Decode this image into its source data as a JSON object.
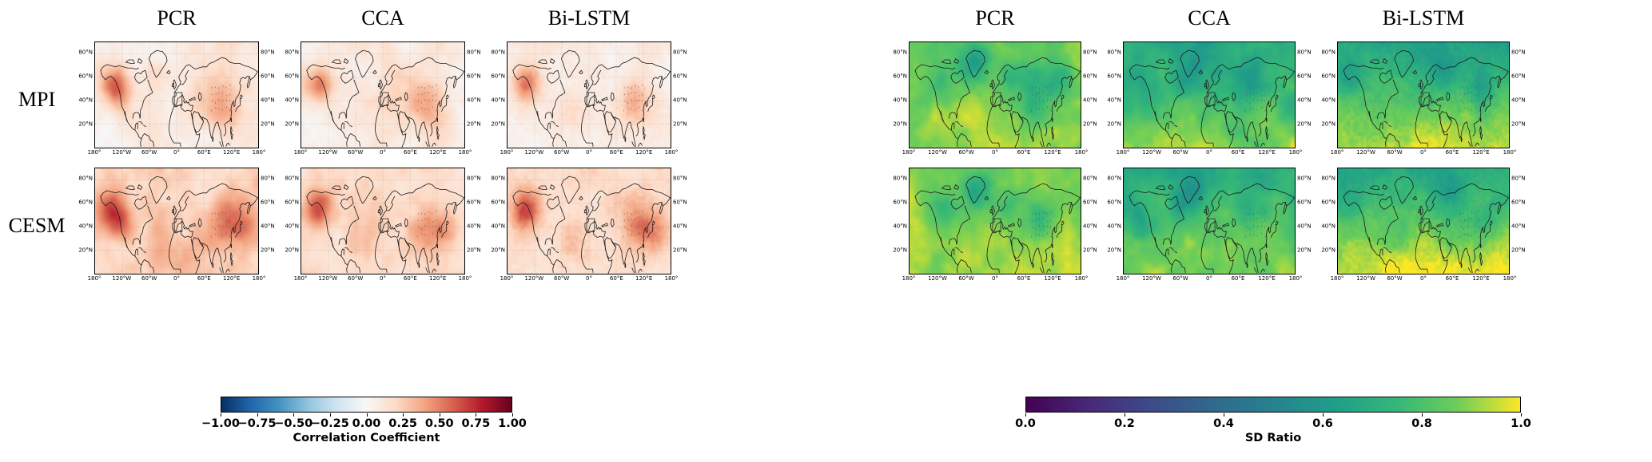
{
  "map_axes": {
    "y_ticks": [
      "80°N",
      "60°N",
      "40°N",
      "20°N"
    ],
    "y_tick_degrees": [
      80,
      60,
      40,
      20
    ],
    "x_ticks": [
      "180°",
      "120°W",
      "60°W",
      "0°",
      "60°E",
      "120°E",
      "180°"
    ],
    "x_tick_degrees": [
      -180,
      -120,
      -60,
      0,
      60,
      120,
      180
    ]
  },
  "panels": [
    {
      "id": "correlation",
      "column_titles": [
        "PCR",
        "CCA",
        "Bi-LSTM"
      ],
      "row_labels": [
        "MPI",
        "CESM"
      ],
      "colorbar": {
        "label": "Correlation Coefficient",
        "colormap": "RdBu_r",
        "tick_labels": [
          "−1.00",
          "−0.75",
          "−0.50",
          "−0.25",
          "0.00",
          "0.25",
          "0.50",
          "0.75",
          "1.00"
        ]
      }
    },
    {
      "id": "sd_ratio",
      "column_titles": [
        "PCR",
        "CCA",
        "Bi-LSTM"
      ],
      "row_labels": [],
      "colorbar": {
        "label": "SD Ratio",
        "colormap": "viridis",
        "tick_labels": [
          "0.0",
          "0.2",
          "0.4",
          "0.6",
          "0.8",
          "1.0"
        ]
      }
    }
  ],
  "chart_data": [
    {
      "type": "heatmap",
      "title": "Correlation Coefficient",
      "columns": [
        "PCR",
        "CCA",
        "Bi-LSTM"
      ],
      "rows": [
        "MPI",
        "CESM"
      ],
      "lon_range": [
        -180,
        180
      ],
      "lat_range": [
        0,
        90
      ],
      "colormap": "RdBu_r",
      "vmin": -1,
      "vmax": 1,
      "stippling": {
        "region": "central and east Asia",
        "lon_range": [
          78,
          118
        ],
        "lat_range": [
          33,
          52
        ]
      },
      "highlight_box": {
        "lon_range": [
          -5,
          12
        ],
        "lat_range": [
          36,
          47
        ]
      },
      "maps": [
        {
          "row": "MPI",
          "col": "PCR",
          "base": 0.1,
          "noise_amp": 0.14,
          "lat_gradient": 0,
          "grain": "smooth",
          "hotspots": [
            {
              "lon": -140,
              "lat": 54,
              "value": 0.42,
              "radius": 16
            },
            {
              "lon": -122,
              "lat": 42,
              "value": 0.22,
              "radius": 12
            },
            {
              "lon": 100,
              "lat": 40,
              "value": 0.26,
              "radius": 22
            },
            {
              "lon": 60,
              "lat": 57,
              "value": 0.12,
              "radius": 20
            },
            {
              "lon": -45,
              "lat": 62,
              "value": 0.14,
              "radius": 14
            },
            {
              "lon": -170,
              "lat": 15,
              "value": -0.1,
              "radius": 24
            }
          ]
        },
        {
          "row": "MPI",
          "col": "CCA",
          "base": 0.1,
          "noise_amp": 0.14,
          "lat_gradient": 0,
          "grain": "smooth",
          "hotspots": [
            {
              "lon": -140,
              "lat": 54,
              "value": 0.4,
              "radius": 16
            },
            {
              "lon": 100,
              "lat": 40,
              "value": 0.28,
              "radius": 22
            },
            {
              "lon": 25,
              "lat": 52,
              "value": 0.12,
              "radius": 22
            },
            {
              "lon": -60,
              "lat": 30,
              "value": 0.08,
              "radius": 16
            },
            {
              "lon": -170,
              "lat": 18,
              "value": -0.08,
              "radius": 22
            }
          ]
        },
        {
          "row": "MPI",
          "col": "Bi-LSTM",
          "base": 0.08,
          "noise_amp": 0.12,
          "lat_gradient": 0,
          "grain": "fine",
          "hotspots": [
            {
              "lon": -140,
              "lat": 54,
              "value": 0.44,
              "radius": 16
            },
            {
              "lon": 102,
              "lat": 41,
              "value": 0.26,
              "radius": 20
            },
            {
              "lon": -40,
              "lat": 30,
              "value": 0.08,
              "radius": 18
            }
          ]
        },
        {
          "row": "CESM",
          "col": "PCR",
          "base": 0.2,
          "noise_amp": 0.16,
          "lat_gradient": 0,
          "grain": "smooth",
          "hotspots": [
            {
              "lon": -142,
              "lat": 54,
              "value": 0.5,
              "radius": 18
            },
            {
              "lon": -120,
              "lat": 40,
              "value": 0.3,
              "radius": 14
            },
            {
              "lon": 108,
              "lat": 40,
              "value": 0.32,
              "radius": 24
            },
            {
              "lon": 150,
              "lat": 38,
              "value": 0.22,
              "radius": 18
            },
            {
              "lon": -35,
              "lat": 25,
              "value": 0.2,
              "radius": 20
            },
            {
              "lon": 20,
              "lat": 12,
              "value": 0.14,
              "radius": 22
            }
          ]
        },
        {
          "row": "CESM",
          "col": "CCA",
          "base": 0.17,
          "noise_amp": 0.15,
          "lat_gradient": 0,
          "grain": "smooth",
          "hotspots": [
            {
              "lon": -142,
              "lat": 54,
              "value": 0.45,
              "radius": 18
            },
            {
              "lon": 108,
              "lat": 40,
              "value": 0.3,
              "radius": 24
            },
            {
              "lon": -35,
              "lat": 28,
              "value": 0.16,
              "radius": 20
            },
            {
              "lon": 150,
              "lat": 36,
              "value": 0.15,
              "radius": 16
            }
          ]
        },
        {
          "row": "CESM",
          "col": "Bi-LSTM",
          "base": 0.18,
          "noise_amp": 0.14,
          "lat_gradient": 0,
          "grain": "fine",
          "hotspots": [
            {
              "lon": -142,
              "lat": 54,
              "value": 0.48,
              "radius": 18
            },
            {
              "lon": 108,
              "lat": 41,
              "value": 0.3,
              "radius": 22
            },
            {
              "lon": 150,
              "lat": 36,
              "value": 0.18,
              "radius": 16
            },
            {
              "lon": -40,
              "lat": 28,
              "value": 0.15,
              "radius": 18
            }
          ]
        }
      ]
    },
    {
      "type": "heatmap",
      "title": "SD Ratio",
      "columns": [
        "PCR",
        "CCA",
        "Bi-LSTM"
      ],
      "rows": [
        "MPI",
        "CESM"
      ],
      "lon_range": [
        -180,
        180
      ],
      "lat_range": [
        0,
        90
      ],
      "colormap": "viridis",
      "vmin": 0,
      "vmax": 1,
      "stippling": {
        "region": "central and east Asia",
        "lon_range": [
          78,
          118
        ],
        "lat_range": [
          33,
          52
        ]
      },
      "highlight_box": {
        "lon_range": [
          -5,
          12
        ],
        "lat_range": [
          36,
          47
        ]
      },
      "maps": [
        {
          "row": "MPI",
          "col": "PCR",
          "base": 0.87,
          "noise_amp": 0.1,
          "lat_gradient": 0.05,
          "grain": "smooth",
          "hotspots": [
            {
              "lon": -42,
              "lat": 72,
              "value": -0.25,
              "radius": 16
            },
            {
              "lon": -115,
              "lat": 55,
              "value": -0.15,
              "radius": 18
            },
            {
              "lon": 95,
              "lat": 50,
              "value": -0.18,
              "radius": 20
            },
            {
              "lon": 140,
              "lat": 60,
              "value": -0.15,
              "radius": 15
            },
            {
              "lon": 30,
              "lat": 62,
              "value": -0.12,
              "radius": 16
            },
            {
              "lon": 75,
              "lat": 32,
              "value": -0.1,
              "radius": 12
            }
          ]
        },
        {
          "row": "MPI",
          "col": "CCA",
          "base": 0.68,
          "noise_amp": 0.12,
          "lat_gradient": 0.22,
          "grain": "smooth",
          "hotspots": [
            {
              "lon": -140,
              "lat": 45,
              "value": -0.12,
              "radius": 18
            },
            {
              "lon": -60,
              "lat": 55,
              "value": -0.14,
              "radius": 16
            },
            {
              "lon": 90,
              "lat": 55,
              "value": -0.12,
              "radius": 20
            },
            {
              "lon": -30,
              "lat": 70,
              "value": -0.14,
              "radius": 14
            },
            {
              "lon": 170,
              "lat": 40,
              "value": -0.08,
              "radius": 16
            }
          ]
        },
        {
          "row": "MPI",
          "col": "Bi-LSTM",
          "base": 0.66,
          "noise_amp": 0.1,
          "lat_gradient": 0.28,
          "grain": "fine",
          "hotspots": [
            {
              "lon": -150,
              "lat": 60,
              "value": -0.12,
              "radius": 18
            },
            {
              "lon": 40,
              "lat": 66,
              "value": -0.12,
              "radius": 18
            },
            {
              "lon": 120,
              "lat": 50,
              "value": -0.1,
              "radius": 15
            }
          ]
        },
        {
          "row": "CESM",
          "col": "PCR",
          "base": 0.88,
          "noise_amp": 0.09,
          "lat_gradient": 0.05,
          "grain": "smooth",
          "hotspots": [
            {
              "lon": -42,
              "lat": 72,
              "value": -0.22,
              "radius": 16
            },
            {
              "lon": 100,
              "lat": 48,
              "value": -0.15,
              "radius": 20
            },
            {
              "lon": -110,
              "lat": 52,
              "value": -0.12,
              "radius": 16
            },
            {
              "lon": 25,
              "lat": 58,
              "value": -0.1,
              "radius": 15
            }
          ]
        },
        {
          "row": "CESM",
          "col": "CCA",
          "base": 0.7,
          "noise_amp": 0.12,
          "lat_gradient": 0.2,
          "grain": "smooth",
          "hotspots": [
            {
              "lon": -140,
              "lat": 48,
              "value": -0.12,
              "radius": 18
            },
            {
              "lon": -55,
              "lat": 58,
              "value": -0.12,
              "radius": 16
            },
            {
              "lon": 85,
              "lat": 55,
              "value": -0.1,
              "radius": 18
            },
            {
              "lon": -30,
              "lat": 72,
              "value": -0.12,
              "radius": 14
            }
          ]
        },
        {
          "row": "CESM",
          "col": "Bi-LSTM",
          "base": 0.68,
          "noise_amp": 0.1,
          "lat_gradient": 0.3,
          "grain": "fine",
          "hotspots": [
            {
              "lon": -150,
              "lat": 60,
              "value": -0.1,
              "radius": 16
            },
            {
              "lon": 50,
              "lat": 68,
              "value": -0.1,
              "radius": 18
            },
            {
              "lon": 130,
              "lat": 45,
              "value": -0.08,
              "radius": 14
            }
          ]
        }
      ]
    }
  ]
}
